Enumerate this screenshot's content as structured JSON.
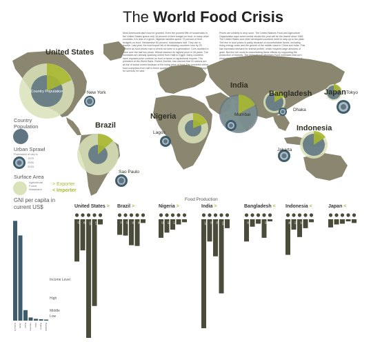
{
  "title_light": "The",
  "title_bold": "World Food Crisis",
  "intro_left": "Most Americans take food for granted. Even the poorest fifth of households in the United States spend only 16 percent of their budget on food. In many other countries, it is less of a given. Nigerian families spend 73 percent of their budgets on food, Vietnamese 65 percent, Indonesians half. They are in trouble. Last year, the food import bill of developing countries rose by 25 percent as food prices rose to levels not seen in a generation. Corn doubled in price over the last two years. Wheat reached its highest price in 28 years. The increases are already sparking unrest from Haiti to Egypt. Many countries have imposed price controls on food or taxes on agricultural exports. The president of the World Bank, Robert Zoellick, has warned that 33 nations are at risk of social unrest because of the rising price of food. The countries where food comprises from half to three-quarters of consumption, there is no margin for survival, he said.",
  "intro_right": "Prices are unlikely to drop soon. The United Nations Food and Agriculture Organization says world cereal stocks this year will be the lowest since 1982. The United States and other developed countries need to step up to the plate. The rise in food prices is partly because of uncontrollable forces, including rising energy costs and the growth of the middle class in China and India. This has increased demand for animal protein, which requires large amounts of grain. But the rich world is exacerbating these effects by supporting the production of biofuels. The International Monetary Fund estimates that corn ethanol production in the United States accounted for at least half the rise in world corn demand in each of the past three years. The elevated corn prices have, in turn, raised food prices across the board, according to the US Agriculture Department.",
  "map_labels": {
    "united_states": "United States",
    "country_population": "Country Population",
    "new_york": "New York",
    "brazil": "Brazil",
    "sao_paulo": "Sao Paulo",
    "nigeria": "Nigeria",
    "lagos": "Lagos",
    "india": "India",
    "mumbai": "Mumbai",
    "bangladesh": "Bangladesh",
    "dhaka": "Dhaka",
    "japan": "Japan",
    "tokyo": "Tokyo",
    "indonesia": "Indonesia",
    "jakarta": "Jakarta"
  },
  "legend": {
    "country_population": "Country Population",
    "urban_sprawl": "Urban Sprawl",
    "urban_sprawl_sub": "Population of city in",
    "years": [
      "1975",
      "2000",
      "2015"
    ],
    "surface_area": "Surface Area",
    "surface_sub": [
      "Agricultural",
      "Forest",
      "Wasteland"
    ],
    "exporter": "> Exporter",
    "importer": "< Importer"
  },
  "gni": {
    "heading": "GNI per capita in current US$",
    "income_level": "Income Level",
    "high": "High",
    "middle": "Middle",
    "low": "Low"
  },
  "food_production": {
    "heading": "Food Production",
    "countries": [
      {
        "name": "United States",
        "arrow": ">"
      },
      {
        "name": "Brazil",
        "arrow": ">"
      },
      {
        "name": "Nigeria",
        "arrow": ">"
      },
      {
        "name": "India",
        "arrow": ">"
      },
      {
        "name": "Bangladesh",
        "arrow": "<"
      },
      {
        "name": "Indonesia",
        "arrow": "<"
      },
      {
        "name": "Japan",
        "arrow": "<"
      }
    ]
  },
  "colors": {
    "bar_dark": "#4b4b3a",
    "gni_bar": "#3e5c6b",
    "accent": "#a8b830",
    "land": "#8a8670",
    "ocean": "#ffffff",
    "circle_fill": "#d9e2b8",
    "population": "#5f7582"
  },
  "chart_data": [
    {
      "type": "bar",
      "title": "GNI per capita in current US$",
      "categories": [
        "United States",
        "Japan",
        "Brazil",
        "Indonesia",
        "India",
        "Nigeria",
        "Bangladesh"
      ],
      "values": [
        44970,
        38410,
        4730,
        1420,
        820,
        640,
        480
      ],
      "ylim": [
        0,
        46000
      ]
    },
    {
      "type": "bar",
      "title": "Food Production",
      "groups": [
        {
          "country": "United States",
          "values": [
            57,
            42,
            160,
            117,
            7
          ]
        },
        {
          "country": "Brazil",
          "values": [
            21,
            22,
            35,
            36,
            5
          ]
        },
        {
          "country": "Nigeria",
          "values": [
            25,
            18,
            14,
            7,
            4
          ]
        },
        {
          "country": "India",
          "values": [
            147,
            30,
            50,
            100,
            12
          ]
        },
        {
          "country": "Bangladesh",
          "values": [
            30,
            10,
            6,
            25,
            2
          ]
        },
        {
          "country": "Indonesia",
          "values": [
            48,
            14,
            24,
            12,
            4
          ]
        },
        {
          "country": "Japan",
          "values": [
            11,
            7,
            6,
            2,
            5
          ]
        }
      ],
      "ylim": [
        0,
        160
      ]
    }
  ]
}
